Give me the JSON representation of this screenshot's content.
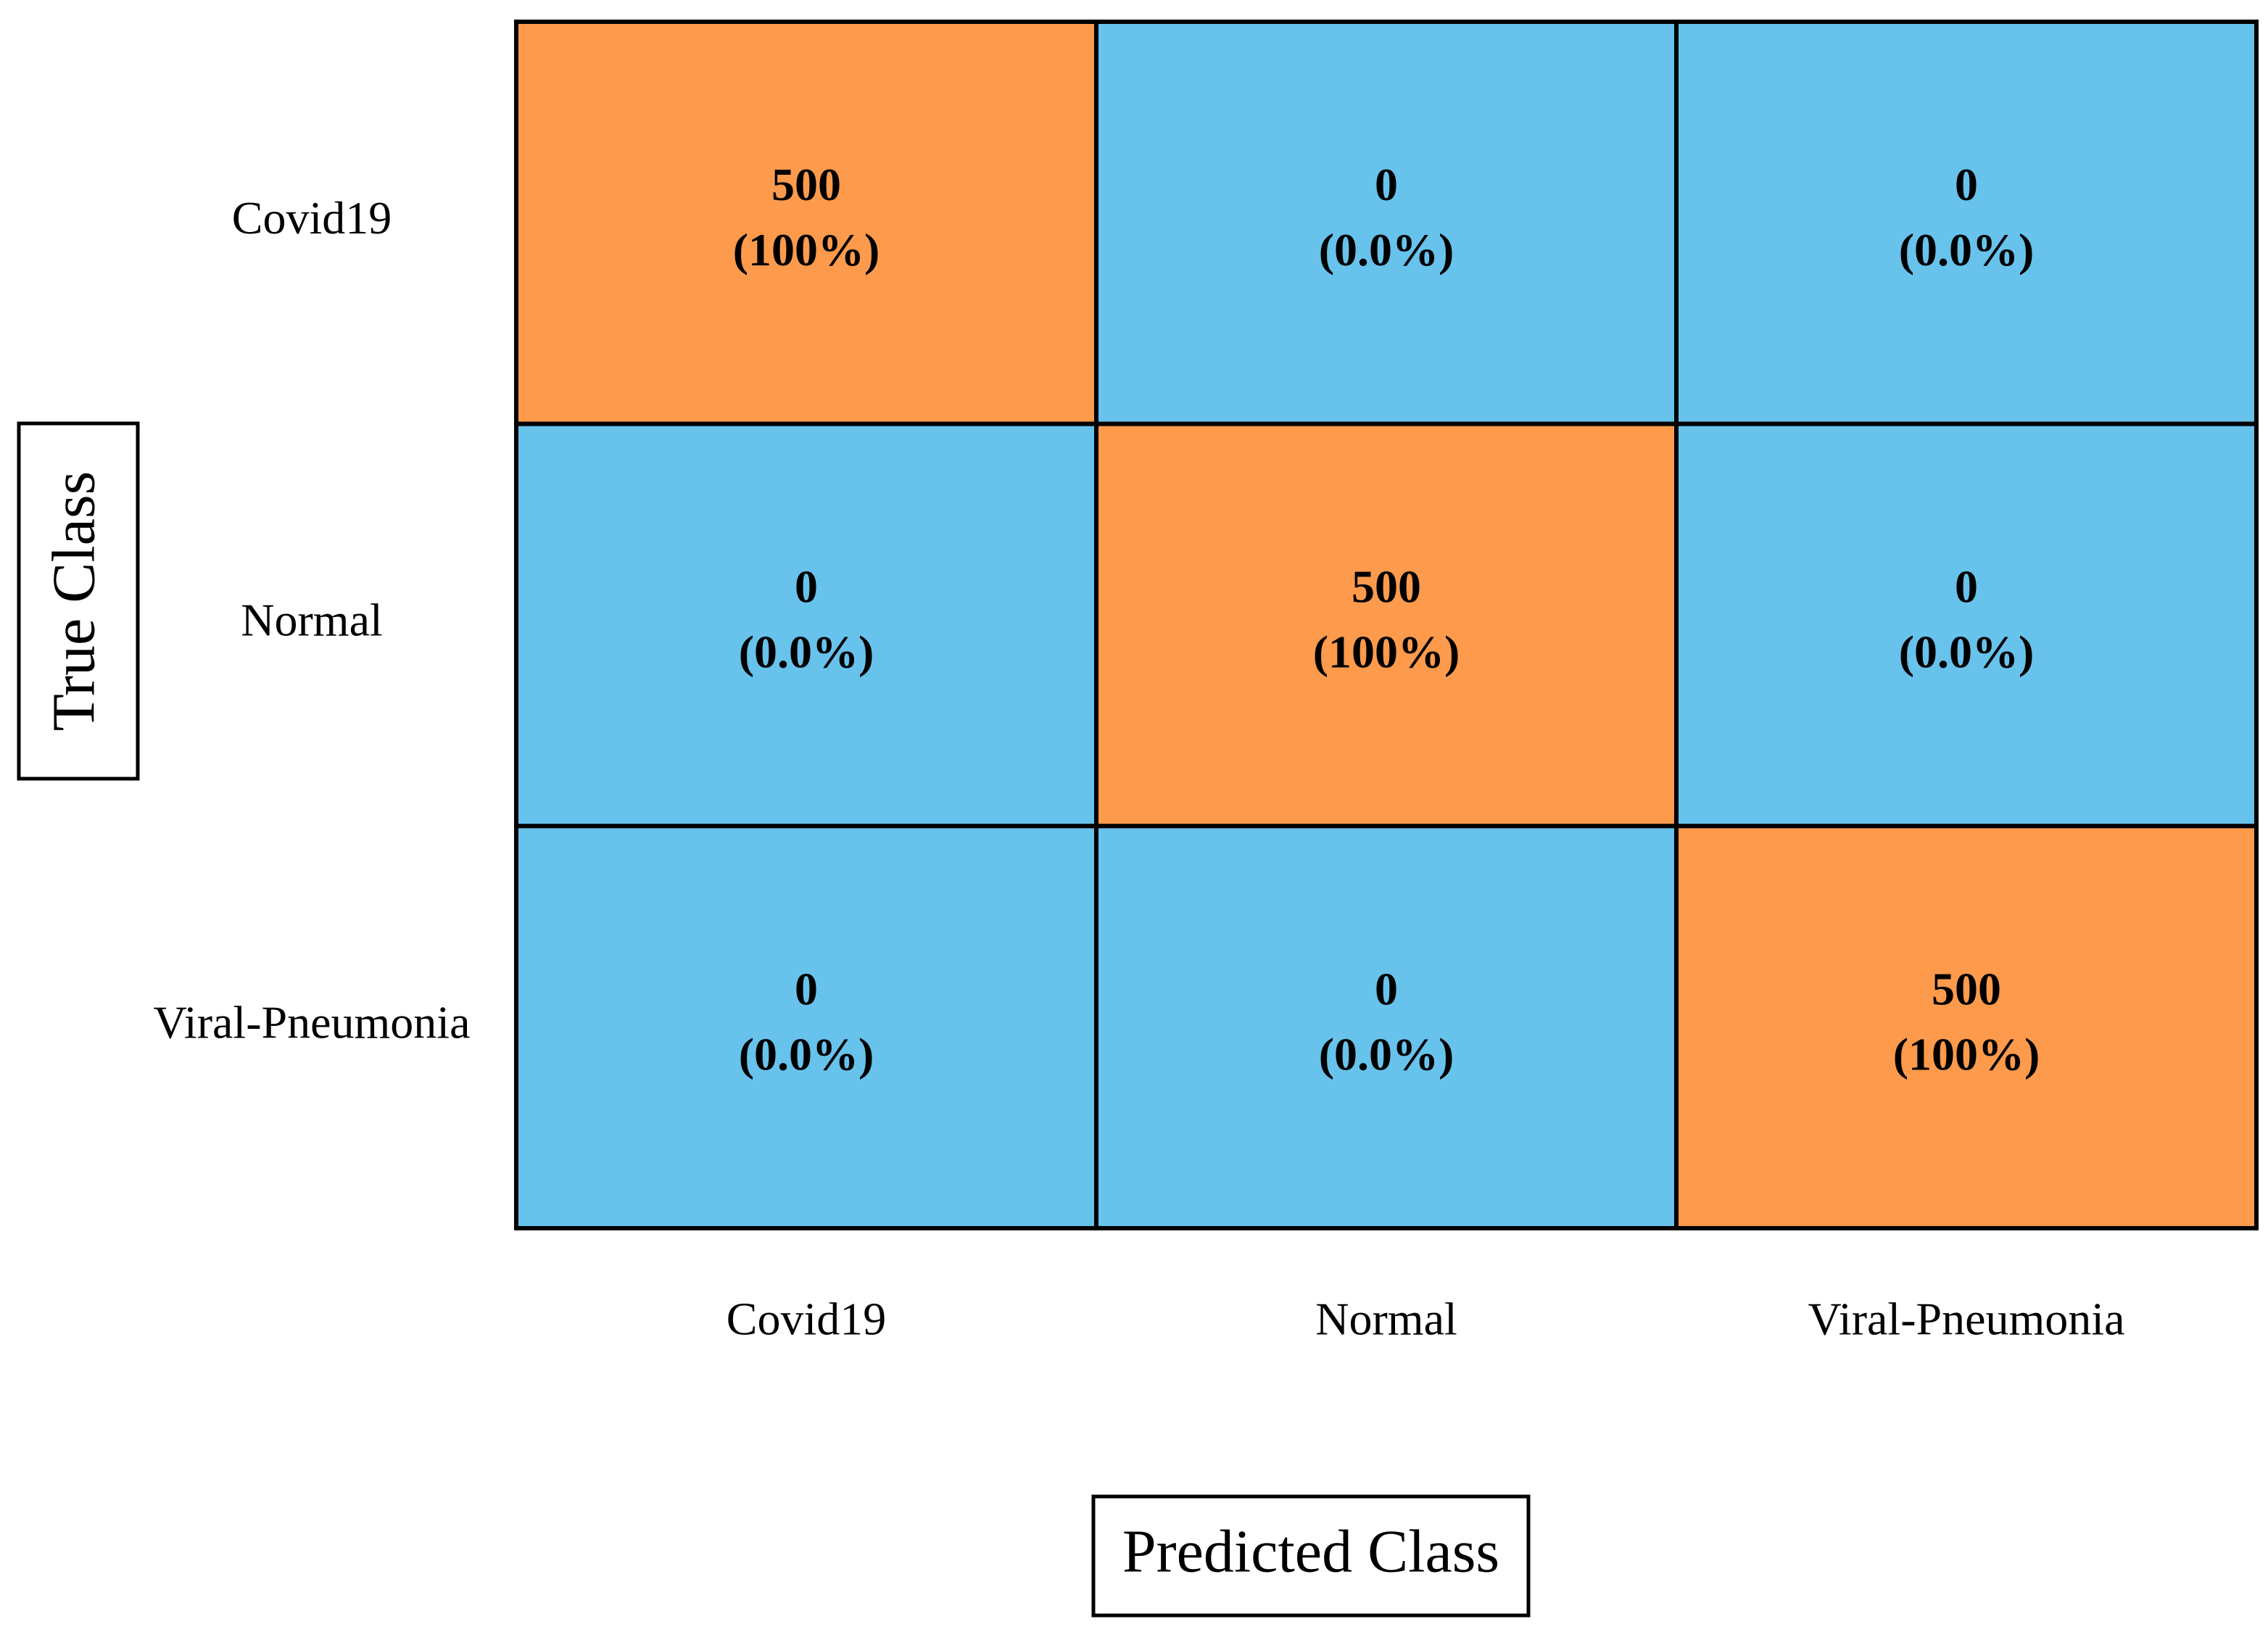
{
  "chart_data": {
    "type": "confusion_matrix",
    "xlabel": "Predicted Class",
    "ylabel": "True Class",
    "categories": [
      "Covid19",
      "Normal",
      "Viral-Pneumonia"
    ],
    "values": [
      [
        500,
        0,
        0
      ],
      [
        0,
        500,
        0
      ],
      [
        0,
        0,
        500
      ]
    ],
    "percentages": [
      [
        100,
        0.0,
        0.0
      ],
      [
        0.0,
        100,
        0.0
      ],
      [
        0.0,
        0.0,
        100
      ]
    ],
    "percentage_labels": [
      [
        "(100%)",
        "(0.0%)",
        "(0.0%)"
      ],
      [
        "(0.0%)",
        "(100%)",
        "(0.0%)"
      ],
      [
        "(0.0%)",
        "(0.0%)",
        "(100%)"
      ]
    ],
    "diagonal_color": "#fd9a4c",
    "off_diagonal_color": "#67c2ec"
  }
}
